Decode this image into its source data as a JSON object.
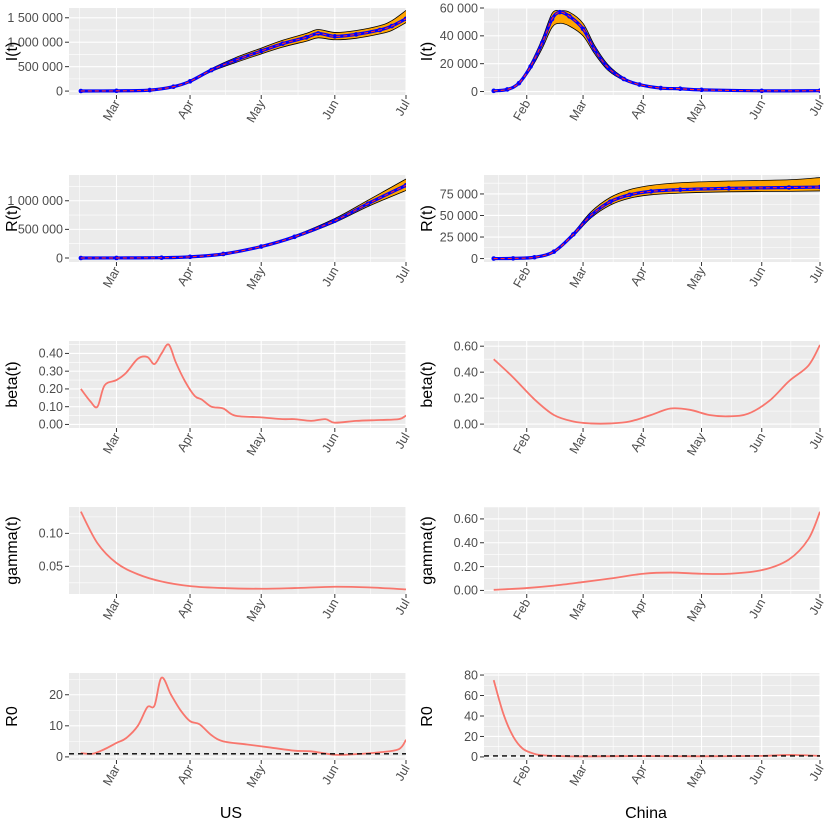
{
  "colors": {
    "panel": "#ebebeb",
    "grid_major": "#ffffff",
    "fit_line": "#f8766d",
    "band_fill": "#ffa500",
    "band_edge": "#000000",
    "obs": "#0000ff",
    "pred": "#ff2a2a",
    "ref_line": "#000000"
  },
  "x_titles": {
    "left": "US",
    "right": "China"
  },
  "chart_data": [
    {
      "id": "us-I",
      "type": "line",
      "ylabel": "I(t)",
      "xlim": [
        "2020-02-10",
        "2020-07-01"
      ],
      "ylim": [
        -80000,
        1700000
      ],
      "x_ticks": [
        "2020-03-01",
        "2020-04-01",
        "2020-05-01",
        "2020-06-01",
        "2020-07-01"
      ],
      "x_tick_labels": [
        "Mar",
        "Apr",
        "May",
        "Jun",
        "Jul"
      ],
      "y_ticks": [
        0,
        500000,
        1000000,
        1500000
      ],
      "y_tick_labels": [
        "0",
        "500 000",
        "1 000 000",
        "1 500 000"
      ],
      "band": true,
      "points": true,
      "x": [
        "2020-02-15",
        "2020-03-01",
        "2020-03-15",
        "2020-03-25",
        "2020-04-01",
        "2020-04-10",
        "2020-04-20",
        "2020-05-01",
        "2020-05-10",
        "2020-05-20",
        "2020-05-25",
        "2020-06-01",
        "2020-06-10",
        "2020-06-20",
        "2020-06-25",
        "2020-07-01"
      ],
      "y": [
        2000,
        5000,
        20000,
        90000,
        200000,
        430000,
        630000,
        820000,
        970000,
        1100000,
        1180000,
        1120000,
        1160000,
        1250000,
        1330000,
        1480000
      ],
      "lower": [
        2000,
        5000,
        18000,
        80000,
        185000,
        400000,
        580000,
        760000,
        900000,
        1020000,
        1090000,
        1050000,
        1080000,
        1170000,
        1240000,
        1400000
      ],
      "upper": [
        2000,
        5000,
        22000,
        100000,
        215000,
        460000,
        680000,
        880000,
        1040000,
        1180000,
        1260000,
        1200000,
        1240000,
        1340000,
        1440000,
        1650000
      ]
    },
    {
      "id": "cn-I",
      "type": "line",
      "ylabel": "I(t)",
      "xlim": [
        "2020-01-10",
        "2020-07-01"
      ],
      "ylim": [
        -2500,
        60000
      ],
      "x_ticks": [
        "2020-02-01",
        "2020-03-01",
        "2020-04-01",
        "2020-05-01",
        "2020-06-01",
        "2020-07-01"
      ],
      "x_tick_labels": [
        "Feb",
        "Mar",
        "Apr",
        "May",
        "Jun",
        "Jul"
      ],
      "y_ticks": [
        0,
        20000,
        40000,
        60000
      ],
      "y_tick_labels": [
        "0",
        "20 000",
        "40 000",
        "60 000"
      ],
      "band": true,
      "points": true,
      "x": [
        "2020-01-15",
        "2020-01-22",
        "2020-01-28",
        "2020-02-03",
        "2020-02-09",
        "2020-02-14",
        "2020-02-18",
        "2020-02-23",
        "2020-03-01",
        "2020-03-07",
        "2020-03-14",
        "2020-03-22",
        "2020-03-30",
        "2020-04-10",
        "2020-04-20",
        "2020-05-01",
        "2020-06-01",
        "2020-07-01"
      ],
      "y": [
        500,
        1500,
        6000,
        18000,
        35000,
        52000,
        57000,
        54000,
        45000,
        30000,
        17000,
        9000,
        5000,
        2500,
        2000,
        1200,
        500,
        600
      ],
      "lower": [
        500,
        1400,
        5500,
        16000,
        31000,
        46000,
        49000,
        47000,
        40000,
        27000,
        15000,
        8000,
        4500,
        2200,
        1700,
        1000,
        400,
        500
      ],
      "upper": [
        500,
        1600,
        6500,
        20000,
        38000,
        56000,
        58000,
        57000,
        49000,
        33000,
        19000,
        10000,
        5500,
        2800,
        2300,
        1400,
        600,
        800
      ]
    },
    {
      "id": "us-R",
      "type": "line",
      "ylabel": "R(t)",
      "xlim": [
        "2020-02-10",
        "2020-07-01"
      ],
      "ylim": [
        -70000,
        1450000
      ],
      "x_ticks": [
        "2020-03-01",
        "2020-04-01",
        "2020-05-01",
        "2020-06-01",
        "2020-07-01"
      ],
      "x_tick_labels": [
        "Mar",
        "Apr",
        "May",
        "Jun",
        "Jul"
      ],
      "y_ticks": [
        0,
        500000,
        1000000
      ],
      "y_tick_labels": [
        "0",
        "500 000",
        "1 000 000"
      ],
      "band": true,
      "points": true,
      "x": [
        "2020-02-15",
        "2020-03-01",
        "2020-03-20",
        "2020-04-01",
        "2020-04-15",
        "2020-05-01",
        "2020-05-15",
        "2020-06-01",
        "2020-06-15",
        "2020-07-01"
      ],
      "y": [
        0,
        1000,
        5000,
        20000,
        70000,
        200000,
        370000,
        650000,
        950000,
        1270000
      ],
      "lower": [
        0,
        1000,
        4500,
        18000,
        65000,
        190000,
        350000,
        620000,
        900000,
        1180000
      ],
      "upper": [
        0,
        1000,
        5500,
        22000,
        75000,
        210000,
        390000,
        690000,
        1010000,
        1380000
      ]
    },
    {
      "id": "cn-R",
      "type": "line",
      "ylabel": "R(t)",
      "xlim": [
        "2020-01-10",
        "2020-07-01"
      ],
      "ylim": [
        -4000,
        97000
      ],
      "x_ticks": [
        "2020-02-01",
        "2020-03-01",
        "2020-04-01",
        "2020-05-01",
        "2020-06-01",
        "2020-07-01"
      ],
      "x_tick_labels": [
        "Feb",
        "Mar",
        "Apr",
        "May",
        "Jun",
        "Jul"
      ],
      "y_ticks": [
        0,
        25000,
        50000,
        75000
      ],
      "y_tick_labels": [
        "0",
        "25 000",
        "50 000",
        "75 000"
      ],
      "band": true,
      "points": true,
      "x": [
        "2020-01-15",
        "2020-01-25",
        "2020-02-05",
        "2020-02-15",
        "2020-02-25",
        "2020-03-05",
        "2020-03-15",
        "2020-03-25",
        "2020-04-05",
        "2020-04-20",
        "2020-05-15",
        "2020-06-15",
        "2020-07-01"
      ],
      "y": [
        0,
        200,
        1500,
        8000,
        28000,
        50000,
        66000,
        74000,
        78000,
        80000,
        81500,
        82500,
        83000
      ],
      "lower": [
        0,
        200,
        1400,
        7500,
        26000,
        47000,
        62000,
        70000,
        74000,
        76000,
        77500,
        78000,
        78500
      ],
      "upper": [
        0,
        200,
        1600,
        9000,
        30000,
        54000,
        71000,
        80000,
        85000,
        88000,
        90000,
        91500,
        94000
      ]
    },
    {
      "id": "us-beta",
      "type": "line",
      "ylabel": "beta(t)",
      "xlim": [
        "2020-02-10",
        "2020-07-01"
      ],
      "ylim": [
        -0.02,
        0.47
      ],
      "x_ticks": [
        "2020-03-01",
        "2020-04-01",
        "2020-05-01",
        "2020-06-01",
        "2020-07-01"
      ],
      "x_tick_labels": [
        "Mar",
        "Apr",
        "May",
        "Jun",
        "Jul"
      ],
      "y_ticks": [
        0,
        0.1,
        0.2,
        0.3,
        0.4
      ],
      "y_tick_labels": [
        "0.00",
        "0.10",
        "0.20",
        "0.30",
        "0.40"
      ],
      "x": [
        "2020-02-15",
        "2020-02-19",
        "2020-02-22",
        "2020-02-25",
        "2020-03-01",
        "2020-03-05",
        "2020-03-10",
        "2020-03-14",
        "2020-03-17",
        "2020-03-20",
        "2020-03-23",
        "2020-03-26",
        "2020-03-30",
        "2020-04-03",
        "2020-04-06",
        "2020-04-10",
        "2020-04-15",
        "2020-04-20",
        "2020-05-01",
        "2020-05-10",
        "2020-05-15",
        "2020-05-22",
        "2020-05-28",
        "2020-06-01",
        "2020-06-10",
        "2020-06-20",
        "2020-06-28",
        "2020-07-01"
      ],
      "y": [
        0.2,
        0.13,
        0.1,
        0.22,
        0.25,
        0.29,
        0.37,
        0.38,
        0.34,
        0.4,
        0.45,
        0.35,
        0.24,
        0.16,
        0.14,
        0.1,
        0.09,
        0.05,
        0.04,
        0.03,
        0.03,
        0.02,
        0.03,
        0.01,
        0.02,
        0.025,
        0.03,
        0.05
      ]
    },
    {
      "id": "cn-beta",
      "type": "line",
      "ylabel": "beta(t)",
      "xlim": [
        "2020-01-10",
        "2020-07-01"
      ],
      "ylim": [
        -0.03,
        0.64
      ],
      "x_ticks": [
        "2020-02-01",
        "2020-03-01",
        "2020-04-01",
        "2020-05-01",
        "2020-06-01",
        "2020-07-01"
      ],
      "x_tick_labels": [
        "Feb",
        "Mar",
        "Apr",
        "May",
        "Jun",
        "Jul"
      ],
      "y_ticks": [
        0,
        0.2,
        0.4,
        0.6
      ],
      "y_tick_labels": [
        "0.00",
        "0.20",
        "0.40",
        "0.60"
      ],
      "x": [
        "2020-01-15",
        "2020-01-25",
        "2020-02-05",
        "2020-02-15",
        "2020-02-25",
        "2020-03-05",
        "2020-03-15",
        "2020-03-25",
        "2020-04-05",
        "2020-04-15",
        "2020-04-25",
        "2020-05-05",
        "2020-05-15",
        "2020-05-25",
        "2020-06-05",
        "2020-06-15",
        "2020-06-25",
        "2020-07-01"
      ],
      "y": [
        0.5,
        0.36,
        0.19,
        0.07,
        0.02,
        0.005,
        0.005,
        0.02,
        0.07,
        0.12,
        0.11,
        0.07,
        0.06,
        0.08,
        0.18,
        0.33,
        0.45,
        0.61
      ]
    },
    {
      "id": "us-gamma",
      "type": "line",
      "ylabel": "gamma(t)",
      "xlim": [
        "2020-02-10",
        "2020-07-01"
      ],
      "ylim": [
        0.008,
        0.14
      ],
      "x_ticks": [
        "2020-03-01",
        "2020-04-01",
        "2020-05-01",
        "2020-06-01",
        "2020-07-01"
      ],
      "x_tick_labels": [
        "Mar",
        "Apr",
        "May",
        "Jun",
        "Jul"
      ],
      "y_ticks": [
        0.05,
        0.1
      ],
      "y_tick_labels": [
        "0.05",
        "0.10"
      ],
      "x": [
        "2020-02-15",
        "2020-02-22",
        "2020-03-01",
        "2020-03-10",
        "2020-03-20",
        "2020-04-01",
        "2020-04-15",
        "2020-05-01",
        "2020-05-15",
        "2020-06-01",
        "2020-06-15",
        "2020-07-01"
      ],
      "y": [
        0.133,
        0.085,
        0.055,
        0.038,
        0.027,
        0.02,
        0.017,
        0.016,
        0.017,
        0.019,
        0.018,
        0.015
      ]
    },
    {
      "id": "cn-gamma",
      "type": "line",
      "ylabel": "gamma(t)",
      "xlim": [
        "2020-01-10",
        "2020-07-01"
      ],
      "ylim": [
        -0.03,
        0.7
      ],
      "x_ticks": [
        "2020-02-01",
        "2020-03-01",
        "2020-04-01",
        "2020-05-01",
        "2020-06-01",
        "2020-07-01"
      ],
      "x_tick_labels": [
        "Feb",
        "Mar",
        "Apr",
        "May",
        "Jun",
        "Jul"
      ],
      "y_ticks": [
        0,
        0.2,
        0.4,
        0.6
      ],
      "y_tick_labels": [
        "0.00",
        "0.20",
        "0.40",
        "0.60"
      ],
      "x": [
        "2020-01-15",
        "2020-02-01",
        "2020-02-15",
        "2020-03-01",
        "2020-03-15",
        "2020-04-01",
        "2020-04-15",
        "2020-05-01",
        "2020-05-15",
        "2020-06-01",
        "2020-06-15",
        "2020-06-25",
        "2020-07-01"
      ],
      "y": [
        0.005,
        0.02,
        0.04,
        0.07,
        0.1,
        0.14,
        0.15,
        0.14,
        0.14,
        0.17,
        0.26,
        0.43,
        0.66
      ]
    },
    {
      "id": "us-R0",
      "type": "line",
      "ylabel": "R0",
      "xlim": [
        "2020-02-10",
        "2020-07-01"
      ],
      "ylim": [
        -1,
        27
      ],
      "x_ticks": [
        "2020-03-01",
        "2020-04-01",
        "2020-05-01",
        "2020-06-01",
        "2020-07-01"
      ],
      "x_tick_labels": [
        "Mar",
        "Apr",
        "May",
        "Jun",
        "Jul"
      ],
      "y_ticks": [
        0,
        10,
        20
      ],
      "y_tick_labels": [
        "0",
        "10",
        "20"
      ],
      "ref_line": 1,
      "x": [
        "2020-02-15",
        "2020-02-20",
        "2020-02-25",
        "2020-03-01",
        "2020-03-05",
        "2020-03-10",
        "2020-03-14",
        "2020-03-17",
        "2020-03-20",
        "2020-03-24",
        "2020-03-28",
        "2020-04-01",
        "2020-04-05",
        "2020-04-10",
        "2020-04-15",
        "2020-04-25",
        "2020-05-05",
        "2020-05-15",
        "2020-05-22",
        "2020-06-01",
        "2020-06-10",
        "2020-06-20",
        "2020-06-28",
        "2020-07-01"
      ],
      "y": [
        1.2,
        1.0,
        2.5,
        4.5,
        6.0,
        10.0,
        16.0,
        16.5,
        25.5,
        20.0,
        15.0,
        11.5,
        10.5,
        7.0,
        5.0,
        4.0,
        3.0,
        2.0,
        1.8,
        0.7,
        0.9,
        1.5,
        2.5,
        5.5
      ]
    },
    {
      "id": "cn-R0",
      "type": "line",
      "ylabel": "R0",
      "xlim": [
        "2020-01-10",
        "2020-07-01"
      ],
      "ylim": [
        -3,
        82
      ],
      "x_ticks": [
        "2020-02-01",
        "2020-03-01",
        "2020-04-01",
        "2020-05-01",
        "2020-06-01",
        "2020-07-01"
      ],
      "x_tick_labels": [
        "Feb",
        "Mar",
        "Apr",
        "May",
        "Jun",
        "Jul"
      ],
      "y_ticks": [
        0,
        20,
        40,
        60,
        80
      ],
      "y_tick_labels": [
        "0",
        "20",
        "40",
        "60",
        "80"
      ],
      "ref_line": 1,
      "x": [
        "2020-01-15",
        "2020-01-20",
        "2020-01-25",
        "2020-01-30",
        "2020-02-05",
        "2020-02-10",
        "2020-02-20",
        "2020-03-01",
        "2020-04-01",
        "2020-05-01",
        "2020-06-01",
        "2020-06-15",
        "2020-07-01"
      ],
      "y": [
        75,
        42,
        20,
        8,
        3,
        1.5,
        0.7,
        0.5,
        0.8,
        0.6,
        1.0,
        2.0,
        1.0
      ]
    }
  ]
}
